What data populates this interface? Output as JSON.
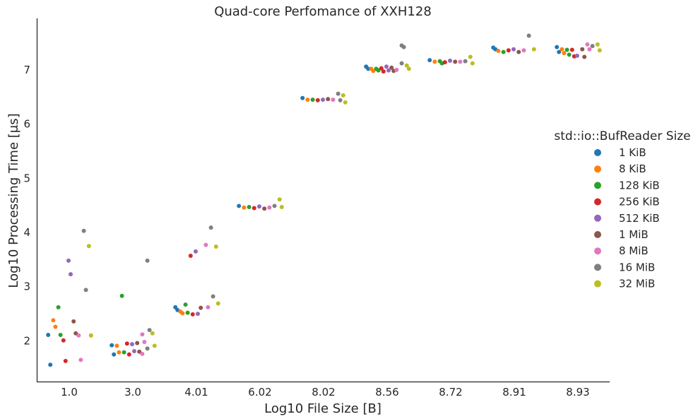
{
  "chart_data": {
    "type": "scatter",
    "subtype": "strip",
    "title": "Quad-core Perfomance of XXH128",
    "xlabel": "Log10 File Size [B]",
    "ylabel": "Log10 Processing Time [μs]",
    "ylim": [
      1.25,
      7.95
    ],
    "yticks": [
      2,
      3,
      4,
      5,
      6,
      7
    ],
    "categories": [
      "1.0",
      "3.0",
      "4.01",
      "6.02",
      "8.02",
      "8.56",
      "8.72",
      "8.91",
      "8.93"
    ],
    "grid": false,
    "legend": {
      "title": "std::io::BufReader Size",
      "placement": "right"
    },
    "series": [
      {
        "name": "1 KiB",
        "color": "#1f77b4",
        "points": [
          [
            0,
            2.11
          ],
          [
            0,
            1.56
          ],
          [
            1,
            1.92
          ],
          [
            1,
            1.75
          ],
          [
            2,
            2.62
          ],
          [
            2,
            2.57
          ],
          [
            3,
            4.49
          ],
          [
            4,
            6.48
          ],
          [
            5,
            7.06
          ],
          [
            5,
            7.02
          ],
          [
            6,
            7.18
          ],
          [
            7,
            7.41
          ],
          [
            7,
            7.38
          ],
          [
            8,
            7.42
          ],
          [
            8,
            7.33
          ]
        ]
      },
      {
        "name": "8 KiB",
        "color": "#ff7f0e",
        "points": [
          [
            0,
            2.38
          ],
          [
            0,
            2.26
          ],
          [
            1,
            1.91
          ],
          [
            1,
            1.79
          ],
          [
            2,
            2.54
          ],
          [
            2,
            2.51
          ],
          [
            3,
            4.46
          ],
          [
            4,
            6.45
          ],
          [
            5,
            7.02
          ],
          [
            5,
            6.98
          ],
          [
            6,
            7.15
          ],
          [
            7,
            7.35
          ],
          [
            8,
            7.38
          ],
          [
            8,
            7.31
          ]
        ]
      },
      {
        "name": "128 KiB",
        "color": "#2ca02c",
        "points": [
          [
            0,
            2.62
          ],
          [
            0,
            2.11
          ],
          [
            1,
            2.83
          ],
          [
            1,
            1.79
          ],
          [
            2,
            2.67
          ],
          [
            2,
            2.52
          ],
          [
            3,
            4.47
          ],
          [
            4,
            6.45
          ],
          [
            5,
            7.02
          ],
          [
            5,
            6.99
          ],
          [
            6,
            7.16
          ],
          [
            6,
            7.12
          ],
          [
            7,
            7.33
          ],
          [
            8,
            7.37
          ],
          [
            8,
            7.28
          ]
        ]
      },
      {
        "name": "256 KiB",
        "color": "#d62728",
        "points": [
          [
            0,
            2.01
          ],
          [
            0,
            1.63
          ],
          [
            1,
            1.95
          ],
          [
            1,
            1.75
          ],
          [
            2,
            3.57
          ],
          [
            2,
            2.49
          ],
          [
            3,
            4.45
          ],
          [
            4,
            6.44
          ],
          [
            5,
            7.03
          ],
          [
            5,
            6.97
          ],
          [
            6,
            7.14
          ],
          [
            7,
            7.36
          ],
          [
            8,
            7.37
          ],
          [
            8,
            7.25
          ]
        ]
      },
      {
        "name": "512 KiB",
        "color": "#9467bd",
        "points": [
          [
            0,
            3.48
          ],
          [
            0,
            3.23
          ],
          [
            1,
            1.94
          ],
          [
            1,
            1.81
          ],
          [
            2,
            3.65
          ],
          [
            2,
            2.5
          ],
          [
            3,
            4.48
          ],
          [
            4,
            6.45
          ],
          [
            5,
            7.06
          ],
          [
            5,
            6.99
          ],
          [
            6,
            7.17
          ],
          [
            7,
            7.38
          ],
          [
            8,
            7.26
          ]
        ]
      },
      {
        "name": "1 MiB",
        "color": "#8c564b",
        "points": [
          [
            0,
            2.36
          ],
          [
            0,
            2.14
          ],
          [
            1,
            1.96
          ],
          [
            1,
            1.8
          ],
          [
            2,
            2.61
          ],
          [
            3,
            4.44
          ],
          [
            4,
            6.46
          ],
          [
            5,
            7.04
          ],
          [
            5,
            6.98
          ],
          [
            6,
            7.15
          ],
          [
            7,
            7.33
          ],
          [
            8,
            7.38
          ],
          [
            8,
            7.24
          ]
        ]
      },
      {
        "name": "8 MiB",
        "color": "#e377c2",
        "points": [
          [
            0,
            2.1
          ],
          [
            0,
            1.65
          ],
          [
            1,
            2.12
          ],
          [
            1,
            1.98
          ],
          [
            1,
            1.76
          ],
          [
            2,
            3.77
          ],
          [
            2,
            2.62
          ],
          [
            3,
            4.46
          ],
          [
            4,
            6.45
          ],
          [
            5,
            7.0
          ],
          [
            6,
            7.15
          ],
          [
            7,
            7.36
          ],
          [
            8,
            7.47
          ],
          [
            8,
            7.38
          ]
        ]
      },
      {
        "name": "16 MiB",
        "color": "#7f7f7f",
        "points": [
          [
            0,
            4.03
          ],
          [
            0,
            2.94
          ],
          [
            1,
            3.48
          ],
          [
            1,
            2.2
          ],
          [
            1,
            1.86
          ],
          [
            2,
            4.09
          ],
          [
            2,
            2.82
          ],
          [
            3,
            4.49
          ],
          [
            4,
            6.56
          ],
          [
            4,
            6.44
          ],
          [
            5,
            7.45
          ],
          [
            5,
            7.42
          ],
          [
            5,
            7.12
          ],
          [
            6,
            7.16
          ],
          [
            7,
            7.63
          ],
          [
            8,
            7.44
          ]
        ]
      },
      {
        "name": "32 MiB",
        "color": "#bcbd22",
        "points": [
          [
            0,
            3.75
          ],
          [
            0,
            2.1
          ],
          [
            1,
            2.14
          ],
          [
            1,
            1.91
          ],
          [
            2,
            3.74
          ],
          [
            2,
            2.69
          ],
          [
            3,
            4.61
          ],
          [
            3,
            4.47
          ],
          [
            4,
            6.53
          ],
          [
            4,
            6.4
          ],
          [
            5,
            7.08
          ],
          [
            5,
            7.02
          ],
          [
            6,
            7.24
          ],
          [
            6,
            7.12
          ],
          [
            7,
            7.38
          ],
          [
            8,
            7.47
          ],
          [
            8,
            7.36
          ]
        ]
      }
    ]
  }
}
